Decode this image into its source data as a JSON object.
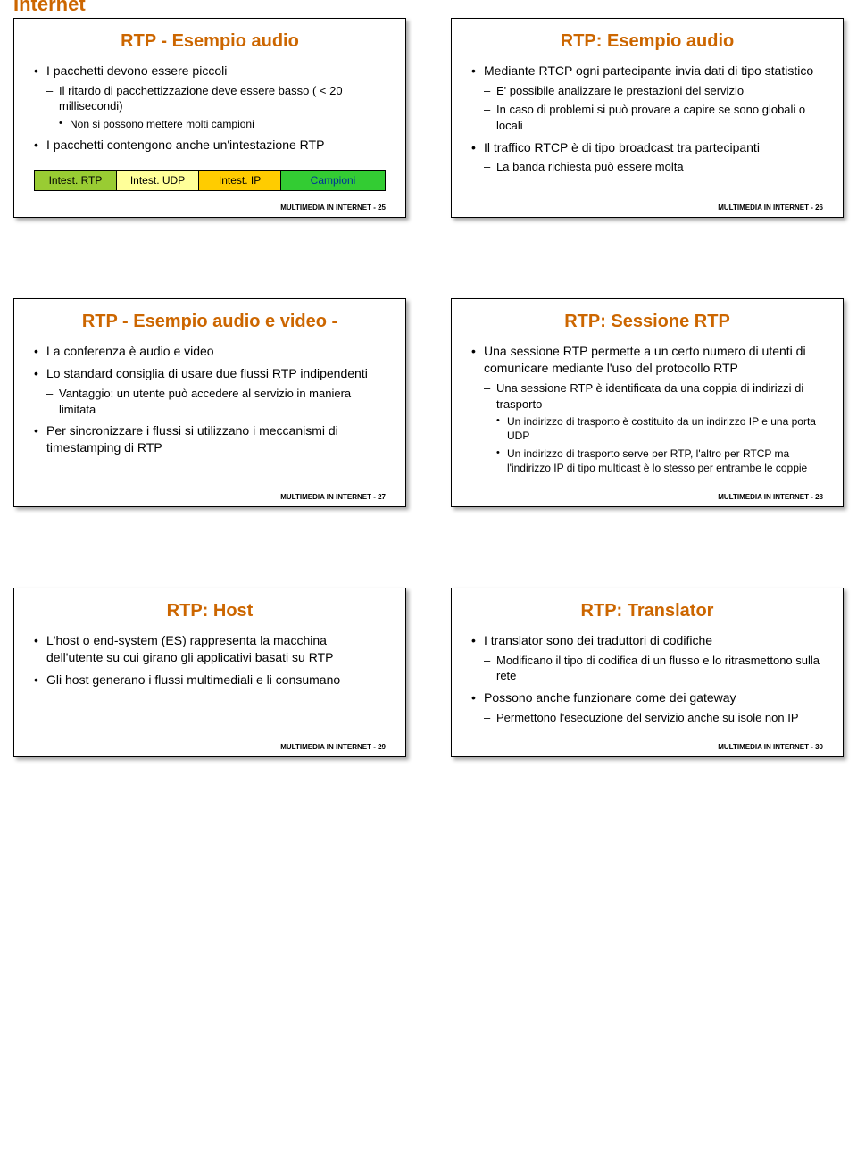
{
  "partial_header": "Internet",
  "footer_prefix": "MULTIMEDIA IN INTERNET - ",
  "colors": {
    "title": "#cc6600",
    "text": "#000000",
    "background": "#ffffff"
  },
  "packet_segments": [
    {
      "label": "Intest. RTP",
      "bg": "#99cc33",
      "flex": 1
    },
    {
      "label": "Intest. UDP",
      "bg": "#ffff99",
      "flex": 1
    },
    {
      "label": "Intest. IP",
      "bg": "#ffcc00",
      "flex": 1
    },
    {
      "label": "Campioni",
      "bg": "#33cc33",
      "flex": 1.3,
      "color": "#003399"
    }
  ],
  "slides": [
    {
      "title": "RTP - Esempio audio",
      "footer_num": "25",
      "has_packet": true,
      "items": [
        {
          "t": "I pacchetti devono essere piccoli",
          "c": [
            {
              "t": "Il ritardo di pacchettizzazione deve essere basso ( < 20 millisecondi)",
              "c": [
                {
                  "t": "Non si possono mettere molti campioni"
                }
              ]
            }
          ]
        },
        {
          "t": "I pacchetti contengono anche un'intestazione RTP"
        }
      ]
    },
    {
      "title": "RTP: Esempio audio",
      "footer_num": "26",
      "items": [
        {
          "t": "Mediante RTCP ogni partecipante invia dati di tipo statistico",
          "c": [
            {
              "t": "E' possibile analizzare le prestazioni del servizio"
            },
            {
              "t": "In caso di problemi si può provare a capire se sono globali o locali"
            }
          ]
        },
        {
          "t": "Il traffico RTCP è di tipo broadcast tra partecipanti",
          "c": [
            {
              "t": "La banda richiesta può essere molta"
            }
          ]
        }
      ]
    },
    {
      "title": "RTP - Esempio audio e video -",
      "footer_num": "27",
      "items": [
        {
          "t": "La conferenza è audio e video"
        },
        {
          "t": "Lo standard consiglia di usare due flussi RTP indipendenti",
          "c": [
            {
              "t": "Vantaggio: un utente può accedere al servizio in maniera limitata"
            }
          ]
        },
        {
          "t": "Per sincronizzare i flussi si utilizzano i meccanismi di timestamping di RTP"
        }
      ]
    },
    {
      "title": "RTP: Sessione RTP",
      "footer_num": "28",
      "items": [
        {
          "t": "Una sessione RTP permette a un certo numero di utenti di comunicare mediante l'uso del protocollo RTP",
          "c": [
            {
              "t": "Una sessione RTP è identificata da una coppia di indirizzi di trasporto",
              "c": [
                {
                  "t": "Un indirizzo di trasporto è costituito da un indirizzo IP e una porta UDP"
                },
                {
                  "t": "Un indirizzo di trasporto serve per RTP, l'altro per RTCP ma l'indirizzo IP di tipo multicast è lo stesso per entrambe le coppie"
                }
              ]
            }
          ]
        }
      ]
    },
    {
      "title": "RTP: Host",
      "footer_num": "29",
      "items": [
        {
          "t": "L'host o end-system (ES) rappresenta la macchina dell'utente su cui girano gli applicativi basati su RTP"
        },
        {
          "t": "Gli host generano i flussi multimediali e li consumano"
        }
      ]
    },
    {
      "title": "RTP: Translator",
      "footer_num": "30",
      "items": [
        {
          "t": "I translator sono dei traduttori di codifiche",
          "c": [
            {
              "t": "Modificano il tipo di codifica di un flusso e lo ritrasmettono sulla rete"
            }
          ]
        },
        {
          "t": "Possono anche funzionare come dei gateway",
          "c": [
            {
              "t": "Permettono l'esecuzione del servizio anche su isole non IP"
            }
          ]
        }
      ]
    }
  ]
}
